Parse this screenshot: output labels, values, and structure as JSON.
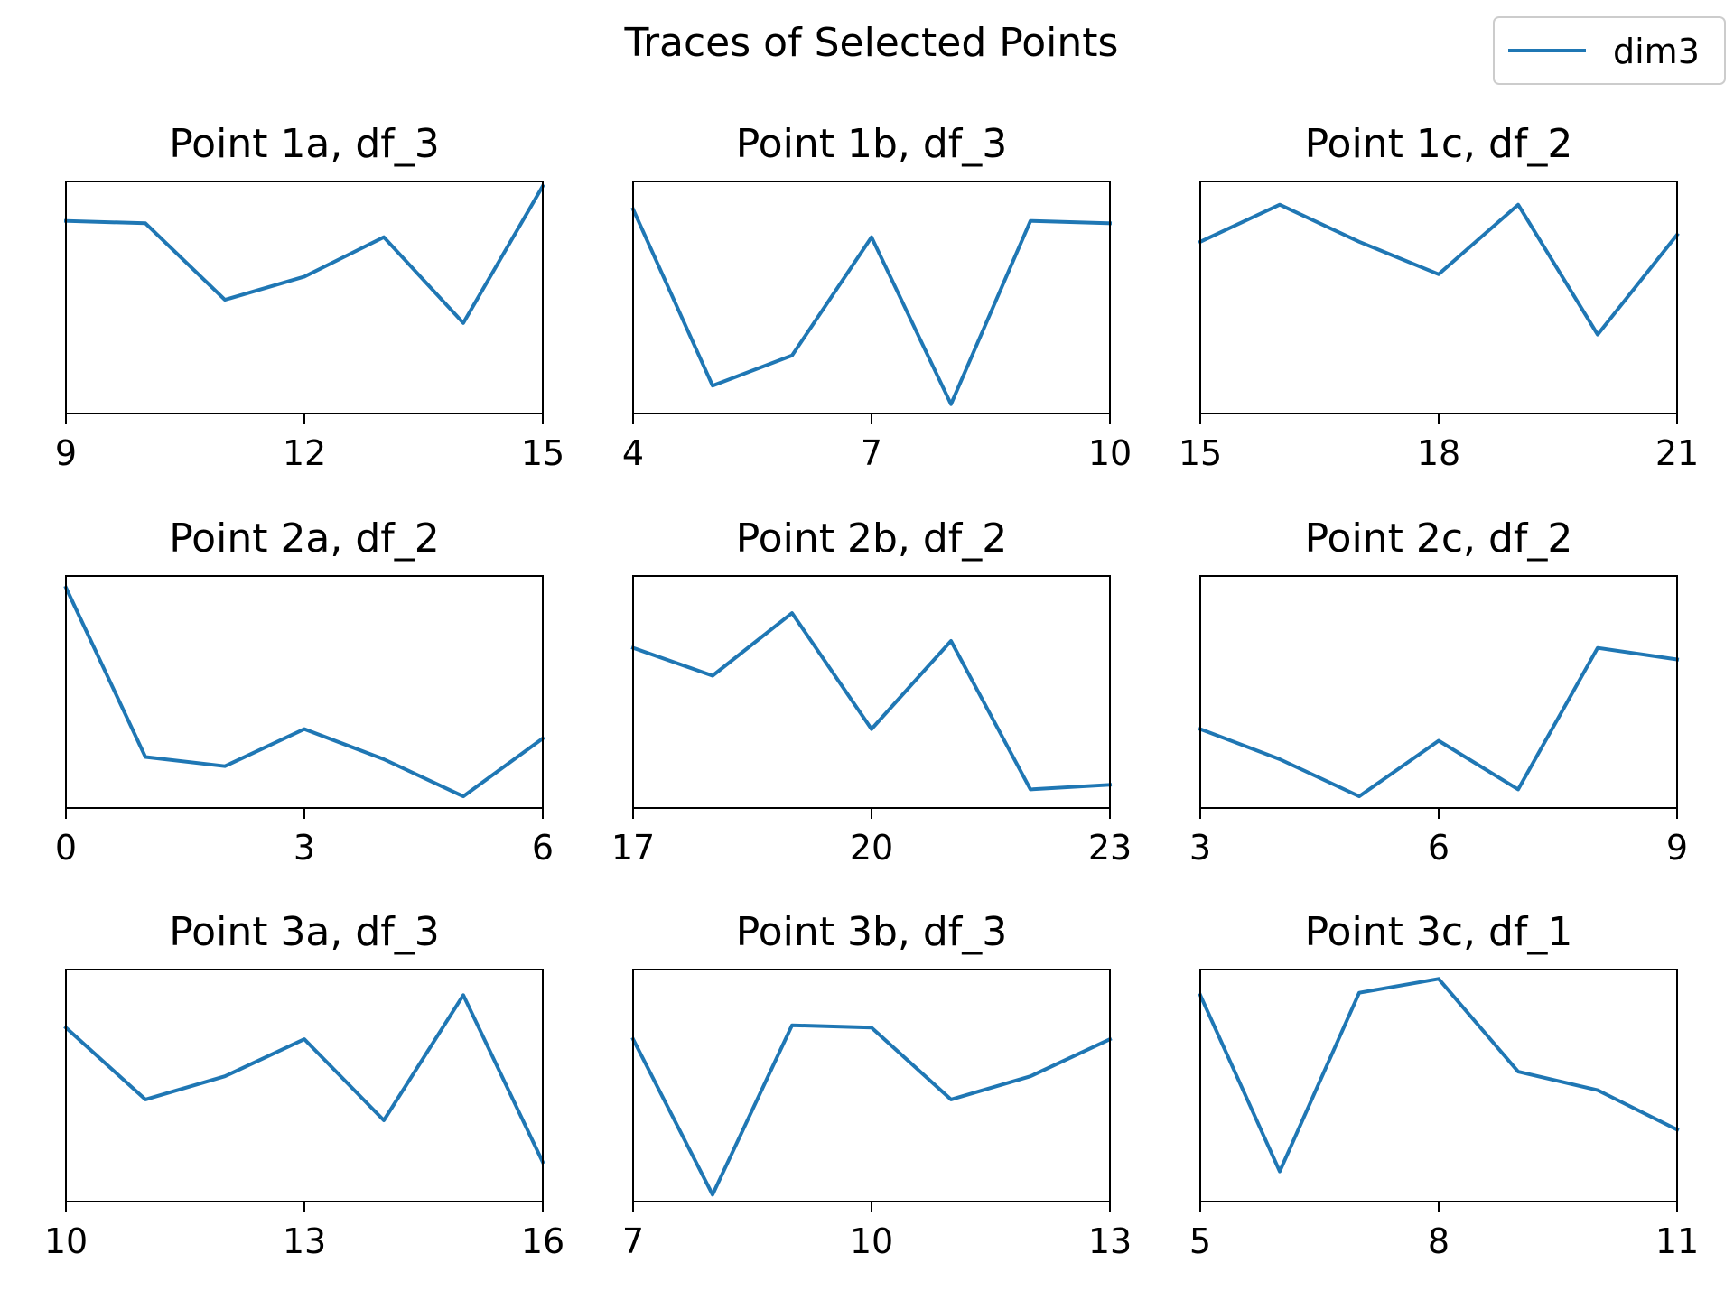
{
  "figure": {
    "title": "Traces of Selected Points",
    "legend": {
      "label": "dim3",
      "placement": "top-right"
    }
  },
  "colors": {
    "series": "#1f77b4",
    "axes": "#000000",
    "background": "#ffffff"
  },
  "chart_data": [
    {
      "type": "line",
      "title": "Point 1a, df_3",
      "x": [
        9,
        10,
        11,
        12,
        13,
        14,
        15
      ],
      "series": [
        {
          "name": "dim3",
          "values": [
            0.83,
            0.82,
            0.49,
            0.59,
            0.76,
            0.39,
            0.98
          ]
        }
      ],
      "xlim": [
        9,
        15
      ],
      "ylim": [
        0,
        1
      ],
      "xticks": [
        "9",
        "12",
        "15"
      ],
      "yticks": [],
      "grid": false
    },
    {
      "type": "line",
      "title": "Point 1b, df_3",
      "x": [
        4,
        5,
        6,
        7,
        8,
        9,
        10
      ],
      "series": [
        {
          "name": "dim3",
          "values": [
            0.88,
            0.12,
            0.25,
            0.76,
            0.04,
            0.83,
            0.82
          ]
        }
      ],
      "xlim": [
        4,
        10
      ],
      "ylim": [
        0,
        1
      ],
      "xticks": [
        "4",
        "7",
        "10"
      ],
      "yticks": [],
      "grid": false
    },
    {
      "type": "line",
      "title": "Point 1c, df_2",
      "x": [
        15,
        16,
        17,
        18,
        19,
        20,
        21
      ],
      "series": [
        {
          "name": "dim3",
          "values": [
            0.74,
            0.9,
            0.74,
            0.6,
            0.9,
            0.34,
            0.77
          ]
        }
      ],
      "xlim": [
        15,
        21
      ],
      "ylim": [
        0,
        1
      ],
      "xticks": [
        "15",
        "18",
        "21"
      ],
      "yticks": [],
      "grid": false
    },
    {
      "type": "line",
      "title": "Point 2a, df_2",
      "x": [
        0,
        1,
        2,
        3,
        4,
        5,
        6
      ],
      "series": [
        {
          "name": "dim3",
          "values": [
            0.95,
            0.22,
            0.18,
            0.34,
            0.21,
            0.05,
            0.3
          ]
        }
      ],
      "xlim": [
        0,
        6
      ],
      "ylim": [
        0,
        1
      ],
      "xticks": [
        "0",
        "3",
        "6"
      ],
      "yticks": [],
      "grid": false
    },
    {
      "type": "line",
      "title": "Point 2b, df_2",
      "x": [
        17,
        18,
        19,
        20,
        21,
        22,
        23
      ],
      "series": [
        {
          "name": "dim3",
          "values": [
            0.69,
            0.57,
            0.84,
            0.34,
            0.72,
            0.08,
            0.1
          ]
        }
      ],
      "xlim": [
        17,
        23
      ],
      "ylim": [
        0,
        1
      ],
      "xticks": [
        "17",
        "20",
        "23"
      ],
      "yticks": [],
      "grid": false
    },
    {
      "type": "line",
      "title": "Point 2c, df_2",
      "x": [
        3,
        4,
        5,
        6,
        7,
        8,
        9
      ],
      "series": [
        {
          "name": "dim3",
          "values": [
            0.34,
            0.21,
            0.05,
            0.29,
            0.08,
            0.69,
            0.64
          ]
        }
      ],
      "xlim": [
        3,
        9
      ],
      "ylim": [
        0,
        1
      ],
      "xticks": [
        "3",
        "6",
        "9"
      ],
      "yticks": [],
      "grid": false
    },
    {
      "type": "line",
      "title": "Point 3a, df_3",
      "x": [
        10,
        11,
        12,
        13,
        14,
        15,
        16
      ],
      "series": [
        {
          "name": "dim3",
          "values": [
            0.75,
            0.44,
            0.54,
            0.7,
            0.35,
            0.89,
            0.17
          ]
        }
      ],
      "xlim": [
        10,
        16
      ],
      "ylim": [
        0,
        1
      ],
      "xticks": [
        "10",
        "13",
        "16"
      ],
      "yticks": [],
      "grid": false
    },
    {
      "type": "line",
      "title": "Point 3b, df_3",
      "x": [
        7,
        8,
        9,
        10,
        11,
        12,
        13
      ],
      "series": [
        {
          "name": "dim3",
          "values": [
            0.7,
            0.03,
            0.76,
            0.75,
            0.44,
            0.54,
            0.7
          ]
        }
      ],
      "xlim": [
        7,
        13
      ],
      "ylim": [
        0,
        1
      ],
      "xticks": [
        "7",
        "10",
        "13"
      ],
      "yticks": [],
      "grid": false
    },
    {
      "type": "line",
      "title": "Point 3c, df_1",
      "x": [
        5,
        6,
        7,
        8,
        9,
        10,
        11
      ],
      "series": [
        {
          "name": "dim3",
          "values": [
            0.89,
            0.13,
            0.9,
            0.96,
            0.56,
            0.48,
            0.31
          ]
        }
      ],
      "xlim": [
        5,
        11
      ],
      "ylim": [
        0,
        1
      ],
      "xticks": [
        "5",
        "8",
        "11"
      ],
      "yticks": [],
      "grid": false
    }
  ]
}
